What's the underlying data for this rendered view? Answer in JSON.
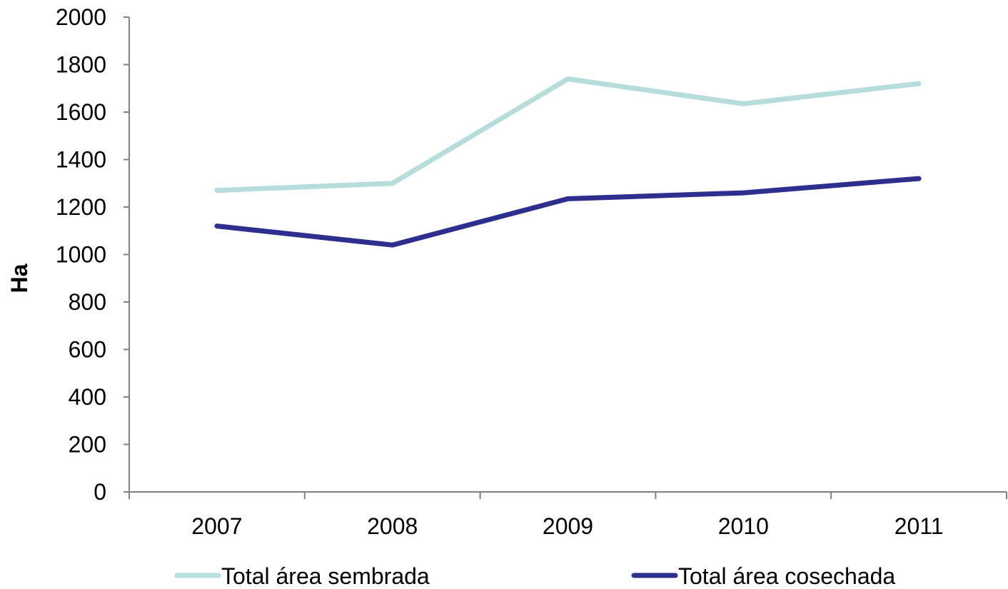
{
  "chart_data": {
    "type": "line",
    "title": "",
    "xlabel": "",
    "ylabel": "Ha",
    "categories": [
      "2007",
      "2008",
      "2009",
      "2010",
      "2011"
    ],
    "ylim": [
      0,
      2000
    ],
    "yticks": [
      0,
      200,
      400,
      600,
      800,
      1000,
      1200,
      1400,
      1600,
      1800,
      2000
    ],
    "grid": false,
    "legend_position": "bottom",
    "series": [
      {
        "name": "Total área sembrada",
        "values": [
          1270,
          1300,
          1740,
          1635,
          1720
        ],
        "color": "#b7dcdc"
      },
      {
        "name": "Total área cosechada",
        "values": [
          1120,
          1040,
          1235,
          1260,
          1320
        ],
        "color": "#2e2e8e"
      }
    ]
  }
}
